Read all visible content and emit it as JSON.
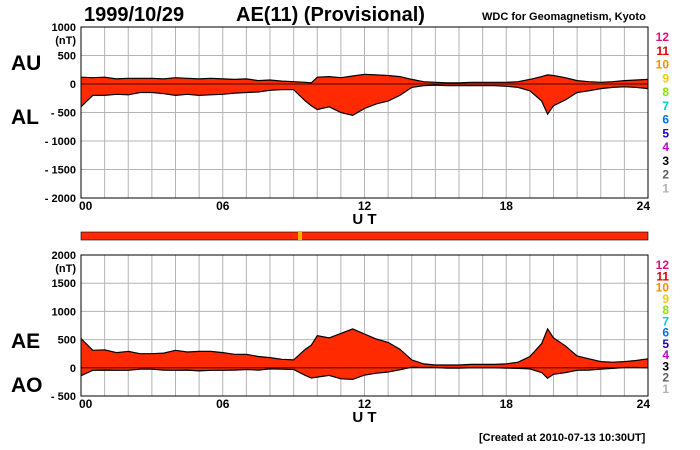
{
  "header": {
    "date": "1999/10/29",
    "index_title": "AE(11) (Provisional)",
    "source": "WDC for Geomagnetism, Kyoto",
    "created": "[Created at 2010-07-13 10:30UT]"
  },
  "colors": {
    "fill": "#ff2a00",
    "stations": [
      "#e0107a",
      "#e00000",
      "#ff8c00",
      "#e8d000",
      "#90e000",
      "#00d0c8",
      "#0070ff",
      "#2000c0",
      "#d000d0",
      "#000000",
      "#606060",
      "#b0b0b0"
    ]
  },
  "station_counts": [
    "12",
    "11",
    "10",
    "9",
    "8",
    "7",
    "6",
    "5",
    "4",
    "3",
    "2",
    "1"
  ],
  "chart_data": [
    {
      "type": "area",
      "panel": "AU/AL",
      "series_labels": [
        "AU",
        "AL"
      ],
      "ylabel_unit": "(nT)",
      "ylim": [
        -2000,
        1000
      ],
      "yticks": [
        1000,
        500,
        0,
        -500,
        -1000,
        -1500,
        -2000
      ],
      "ytick_labels": [
        "1000",
        "500",
        "0",
        "- 500",
        "- 1000",
        "- 1500",
        "- 2000"
      ],
      "xlabel": "U T",
      "xlim": [
        0,
        24
      ],
      "xticks": [
        0,
        6,
        12,
        18,
        24
      ],
      "xtick_labels": [
        "00",
        "06",
        "12",
        "18",
        "24"
      ],
      "grid": true,
      "x": [
        0,
        0.5,
        1,
        1.5,
        2,
        2.5,
        3,
        3.5,
        4,
        4.5,
        5,
        5.5,
        6,
        6.5,
        7,
        7.5,
        8,
        8.5,
        9,
        9.5,
        9.75,
        10,
        10.5,
        11,
        11.5,
        12,
        12.5,
        13,
        13.5,
        14,
        14.5,
        15,
        15.5,
        16,
        16.5,
        17,
        17.5,
        18,
        18.5,
        19,
        19.5,
        19.75,
        20,
        20.5,
        21,
        21.5,
        22,
        22.5,
        23,
        23.5,
        24
      ],
      "series": [
        {
          "name": "AU",
          "values": [
            120,
            110,
            120,
            90,
            100,
            100,
            100,
            90,
            110,
            100,
            90,
            100,
            90,
            80,
            90,
            60,
            70,
            50,
            40,
            30,
            20,
            120,
            130,
            110,
            140,
            170,
            160,
            150,
            130,
            80,
            40,
            30,
            20,
            20,
            30,
            30,
            30,
            30,
            40,
            80,
            130,
            160,
            150,
            110,
            60,
            40,
            30,
            40,
            60,
            70,
            80
          ]
        },
        {
          "name": "AL",
          "values": [
            -400,
            -200,
            -200,
            -180,
            -190,
            -150,
            -150,
            -170,
            -200,
            -180,
            -200,
            -190,
            -180,
            -160,
            -150,
            -140,
            -110,
            -100,
            -100,
            -300,
            -380,
            -450,
            -400,
            -500,
            -550,
            -430,
            -350,
            -300,
            -200,
            -60,
            -30,
            -20,
            -30,
            -30,
            -30,
            -30,
            -30,
            -40,
            -60,
            -120,
            -300,
            -530,
            -380,
            -280,
            -150,
            -120,
            -80,
            -60,
            -50,
            -60,
            -80
          ]
        }
      ]
    },
    {
      "type": "area",
      "panel": "AE/AO",
      "series_labels": [
        "AE",
        "AO"
      ],
      "ylabel_unit": "(nT)",
      "ylim": [
        -500,
        2000
      ],
      "yticks": [
        2000,
        1500,
        1000,
        500,
        0,
        -500
      ],
      "ytick_labels": [
        "2000",
        "1500",
        "1000",
        "500",
        "0",
        "- 500"
      ],
      "xlabel": "U T",
      "xlim": [
        0,
        24
      ],
      "xticks": [
        0,
        6,
        12,
        18,
        24
      ],
      "xtick_labels": [
        "00",
        "06",
        "12",
        "18",
        "24"
      ],
      "grid": true,
      "x": [
        0,
        0.5,
        1,
        1.5,
        2,
        2.5,
        3,
        3.5,
        4,
        4.5,
        5,
        5.5,
        6,
        6.5,
        7,
        7.5,
        8,
        8.5,
        9,
        9.5,
        9.75,
        10,
        10.5,
        11,
        11.5,
        12,
        12.5,
        13,
        13.5,
        14,
        14.5,
        15,
        15.5,
        16,
        16.5,
        17,
        17.5,
        18,
        18.5,
        19,
        19.5,
        19.75,
        20,
        20.5,
        21,
        21.5,
        22,
        22.5,
        23,
        23.5,
        24
      ],
      "series": [
        {
          "name": "AE",
          "values": [
            520,
            310,
            320,
            270,
            290,
            250,
            250,
            260,
            310,
            280,
            290,
            290,
            270,
            240,
            240,
            200,
            180,
            150,
            140,
            330,
            400,
            570,
            530,
            610,
            690,
            600,
            510,
            450,
            330,
            140,
            70,
            50,
            50,
            50,
            60,
            60,
            60,
            70,
            100,
            200,
            430,
            690,
            530,
            390,
            210,
            160,
            110,
            100,
            110,
            130,
            160
          ]
        },
        {
          "name": "AO",
          "values": [
            -140,
            -45,
            -40,
            -45,
            -45,
            -25,
            -25,
            -40,
            -45,
            -40,
            -55,
            -45,
            -45,
            -40,
            -30,
            -40,
            -20,
            -25,
            -30,
            -135,
            -180,
            -165,
            -135,
            -195,
            -205,
            -130,
            -95,
            -75,
            -35,
            10,
            5,
            5,
            -5,
            -5,
            0,
            0,
            0,
            -5,
            -10,
            -20,
            -85,
            -185,
            -115,
            -85,
            -45,
            -40,
            -25,
            -10,
            5,
            5,
            0
          ]
        }
      ]
    }
  ]
}
